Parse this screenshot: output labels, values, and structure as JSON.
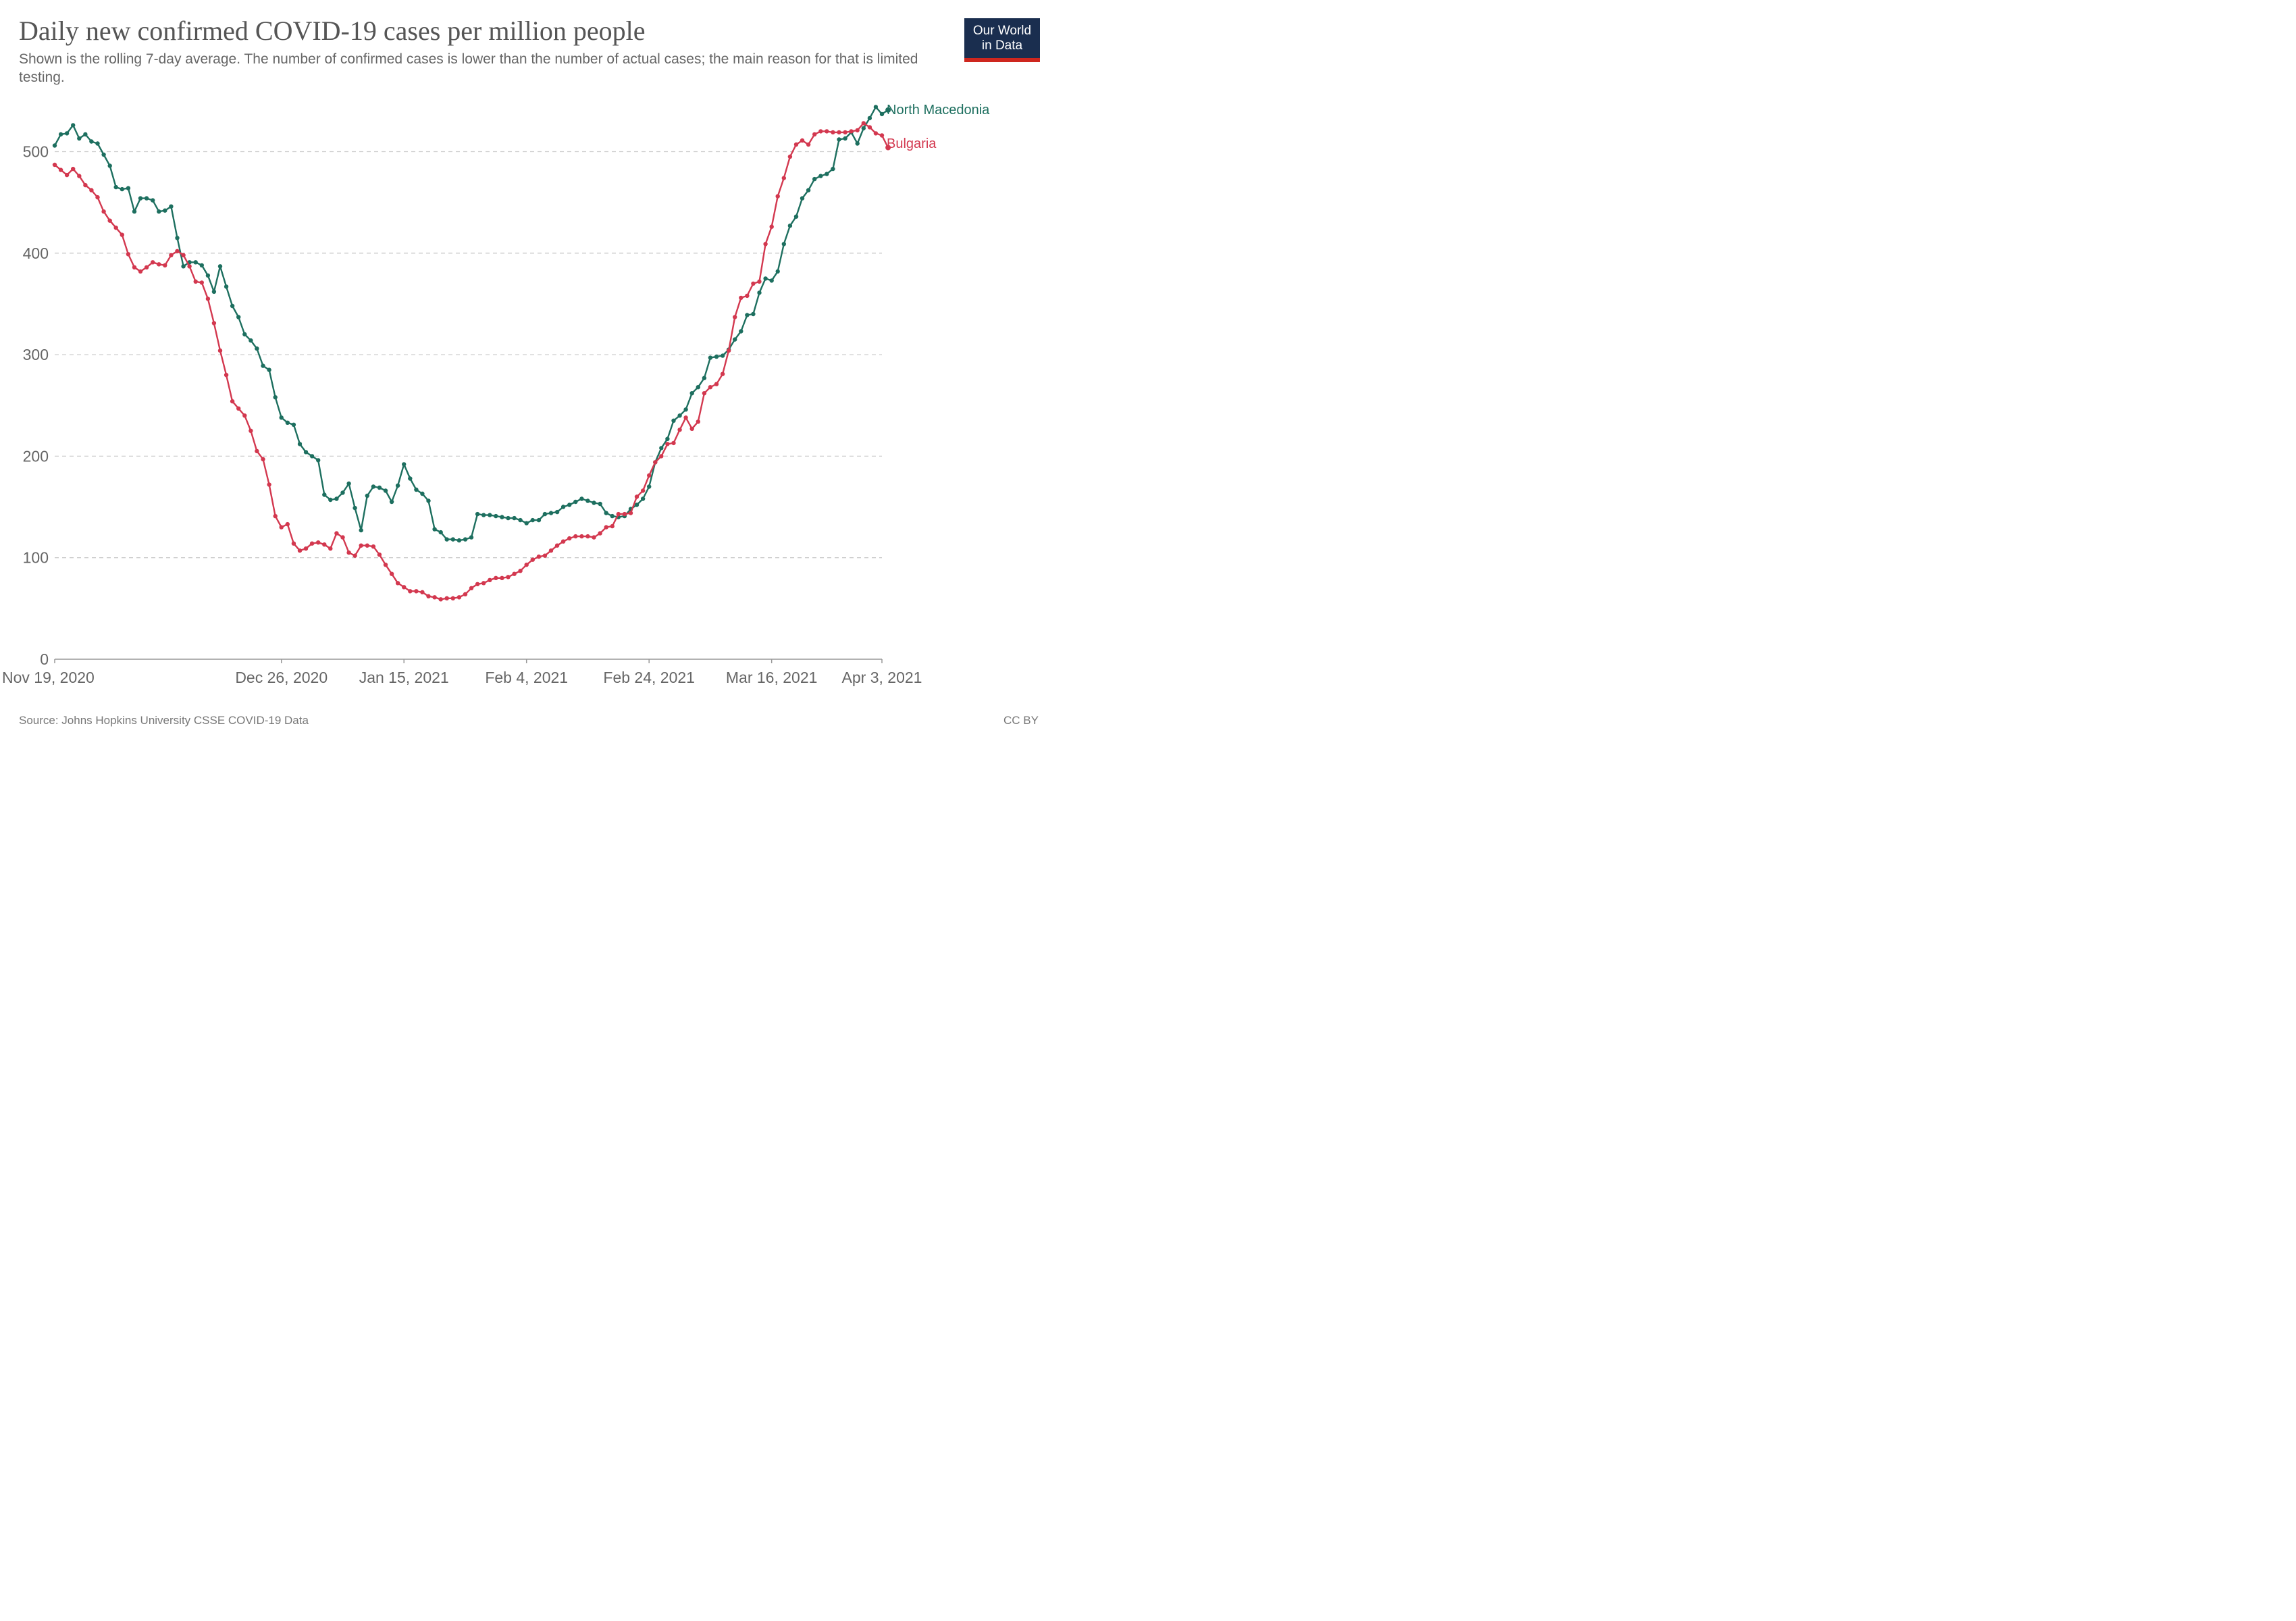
{
  "header": {
    "title": "Daily new confirmed COVID-19 cases per million people",
    "subtitle": "Shown is the rolling 7-day average. The number of confirmed cases is lower than the number of actual cases; the main reason for that is limited testing."
  },
  "logo": {
    "line1": "Our World",
    "line2": "in Data",
    "bg_color": "#1a2e4f",
    "accent_color": "#ce261e"
  },
  "footer": {
    "source": "Source: Johns Hopkins University CSSE COVID-19 Data",
    "license": "CC BY"
  },
  "chart_data": {
    "type": "line",
    "title": "Daily new confirmed COVID-19 cases per million people",
    "x_start": "2020-11-19",
    "x_end": "2021-04-03",
    "xlabel": "",
    "ylabel": "",
    "ylim": [
      0,
      540
    ],
    "y_ticks": [
      0,
      100,
      200,
      300,
      400,
      500
    ],
    "x_ticks": [
      {
        "date": "2020-11-19",
        "label": "Nov 19, 2020"
      },
      {
        "date": "2020-12-26",
        "label": "Dec 26, 2020"
      },
      {
        "date": "2021-01-15",
        "label": "Jan 15, 2021"
      },
      {
        "date": "2021-02-04",
        "label": "Feb 4, 2021"
      },
      {
        "date": "2021-02-24",
        "label": "Feb 24, 2021"
      },
      {
        "date": "2021-03-16",
        "label": "Mar 16, 2021"
      },
      {
        "date": "2021-04-03",
        "label": "Apr 3, 2021"
      }
    ],
    "grid": true,
    "legend": "right-end labels",
    "series": [
      {
        "name": "North Macedonia",
        "color": "#1d6f5f",
        "values": [
          506,
          517,
          518,
          526,
          513,
          517,
          510,
          508,
          497,
          486,
          465,
          463,
          464,
          441,
          454,
          454,
          452,
          441,
          442,
          446,
          415,
          387,
          391,
          391,
          388,
          378,
          362,
          387,
          367,
          348,
          337,
          320,
          314,
          306,
          289,
          285,
          258,
          238,
          233,
          231,
          212,
          204,
          200,
          196,
          162,
          157,
          158,
          164,
          173,
          149,
          127,
          161,
          170,
          169,
          166,
          155,
          171,
          192,
          178,
          167,
          163,
          156,
          128,
          125,
          118,
          118,
          117,
          118,
          120,
          143,
          142,
          142,
          141,
          140,
          139,
          139,
          137,
          134,
          137,
          137,
          143,
          144,
          145,
          150,
          152,
          155,
          158,
          156,
          154,
          153,
          144,
          141,
          140,
          141,
          148,
          152,
          158,
          170,
          194,
          208,
          217,
          235,
          240,
          246,
          262,
          268,
          277,
          297,
          298,
          299,
          305,
          315,
          323,
          339,
          340,
          361,
          375,
          373,
          382,
          409,
          427,
          436,
          454,
          462,
          473,
          476,
          478,
          483,
          512,
          513,
          519,
          508,
          523,
          533,
          544,
          537,
          541
        ]
      },
      {
        "name": "Bulgaria",
        "color": "#d3384f",
        "values": [
          487,
          482,
          477,
          483,
          476,
          467,
          462,
          455,
          441,
          432,
          425,
          418,
          399,
          386,
          382,
          386,
          391,
          389,
          388,
          398,
          402,
          398,
          387,
          372,
          371,
          355,
          331,
          304,
          280,
          254,
          247,
          240,
          225,
          205,
          197,
          172,
          141,
          130,
          133,
          114,
          107,
          109,
          114,
          115,
          113,
          109,
          124,
          120,
          105,
          102,
          112,
          112,
          111,
          103,
          93,
          84,
          75,
          71,
          67,
          67,
          66,
          62,
          61,
          59,
          60,
          60,
          61,
          64,
          70,
          74,
          75,
          78,
          80,
          80,
          81,
          84,
          87,
          93,
          98,
          101,
          102,
          107,
          112,
          116,
          119,
          121,
          121,
          121,
          120,
          124,
          130,
          131,
          143,
          143,
          144,
          160,
          166,
          181,
          194,
          200,
          212,
          213,
          226,
          238,
          227,
          234,
          262,
          268,
          271,
          281,
          304,
          337,
          356,
          358,
          370,
          372,
          409,
          426,
          456,
          474,
          495,
          507,
          511,
          507,
          517,
          520,
          520,
          519,
          519,
          519,
          520,
          521,
          528,
          524,
          518,
          516,
          504
        ]
      }
    ]
  }
}
